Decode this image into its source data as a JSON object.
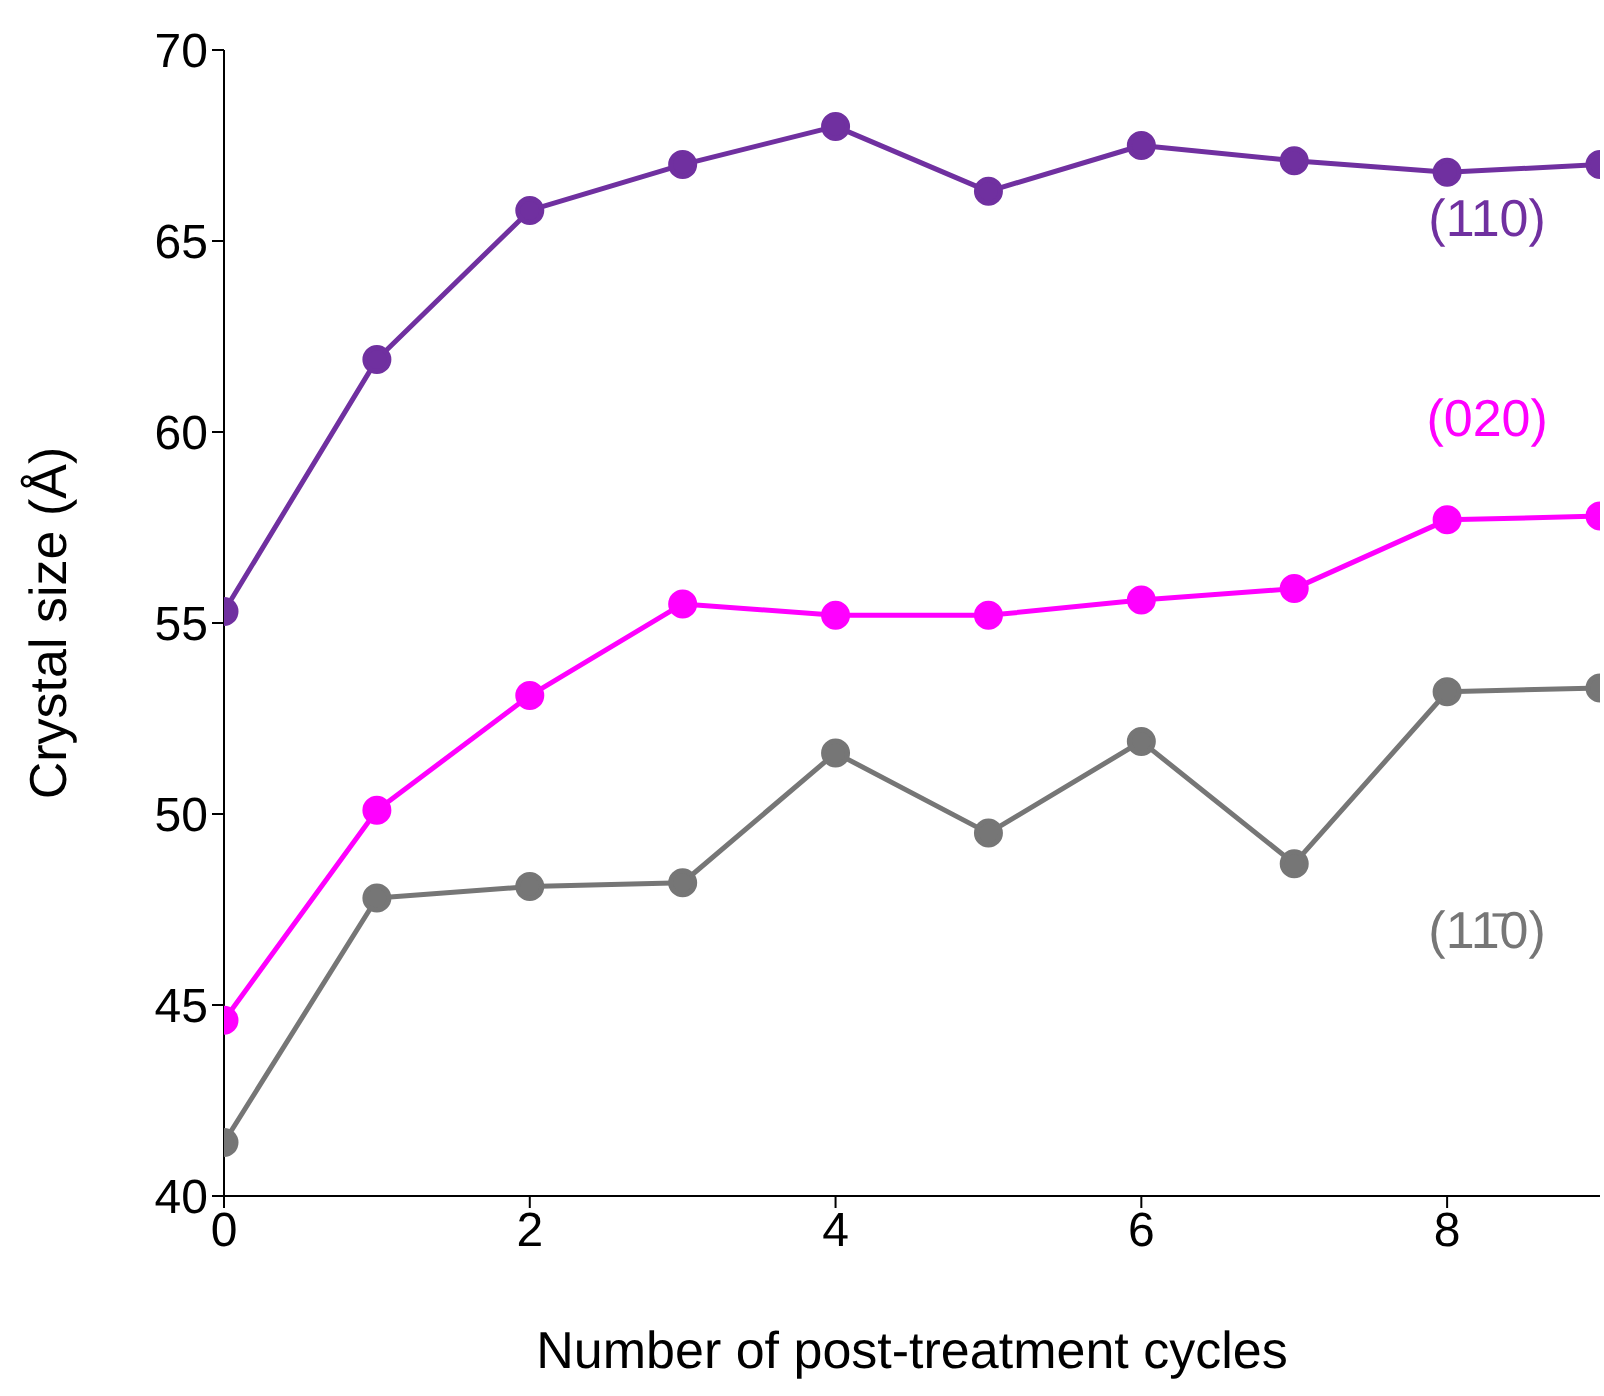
{
  "chart_data": {
    "type": "line",
    "xlabel": "Number of post-treatment cycles",
    "ylabel": "Crystal size (Å)",
    "x": [
      0,
      1,
      2,
      3,
      4,
      5,
      6,
      7,
      8,
      9
    ],
    "series": [
      {
        "name": "(110)",
        "color": "#7030a0",
        "values": [
          55.3,
          61.9,
          65.8,
          67.0,
          68.0,
          66.3,
          67.5,
          67.1,
          66.8,
          67.0
        ]
      },
      {
        "name": "(020)",
        "color": "#ff00ff",
        "values": [
          44.6,
          50.1,
          53.1,
          55.5,
          55.2,
          55.2,
          55.6,
          55.9,
          57.7,
          57.8
        ]
      },
      {
        "name": "(11̄0)",
        "color": "#767676",
        "values": [
          41.4,
          47.8,
          48.1,
          48.2,
          51.6,
          49.5,
          51.9,
          48.7,
          53.2,
          53.3
        ]
      }
    ],
    "xlim": [
      0,
      9
    ],
    "xticks": [
      0,
      2,
      4,
      6,
      8
    ],
    "ylim": [
      40,
      70
    ],
    "yticks": [
      40,
      45,
      50,
      55,
      60,
      65,
      70
    ],
    "grid": false,
    "legend": false,
    "marker": "circle",
    "line_style": "solid"
  }
}
